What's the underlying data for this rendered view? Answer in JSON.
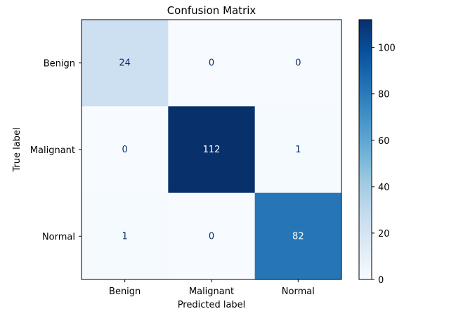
{
  "chart_data": {
    "type": "heatmap",
    "title": "Confusion Matrix",
    "xlabel": "Predicted label",
    "ylabel": "True label",
    "x_categories": [
      "Benign",
      "Malignant",
      "Normal"
    ],
    "y_categories": [
      "Benign",
      "Malignant",
      "Normal"
    ],
    "values": [
      [
        24,
        0,
        0
      ],
      [
        0,
        112,
        1
      ],
      [
        1,
        0,
        82
      ]
    ],
    "colormap": "Blues",
    "vmin": 0,
    "vmax": 112,
    "colorbar_ticks": [
      0,
      20,
      40,
      60,
      80,
      100
    ],
    "grid": false
  }
}
